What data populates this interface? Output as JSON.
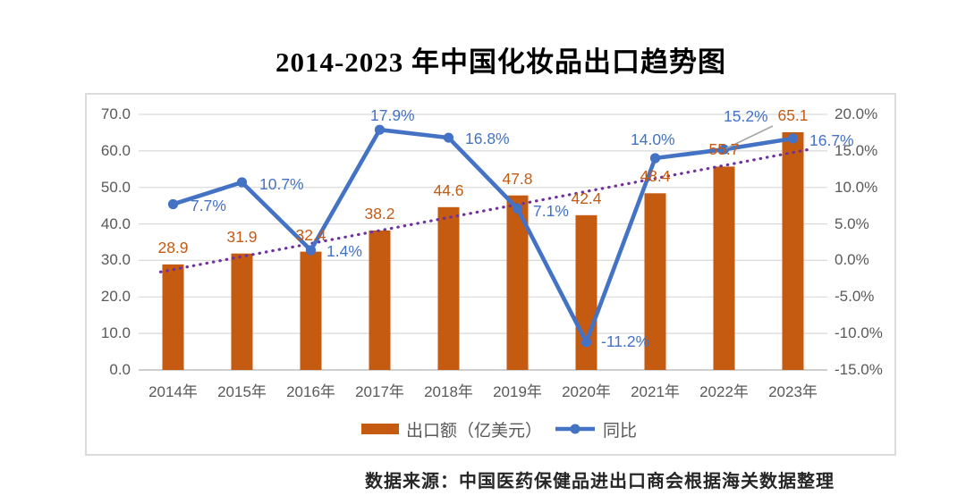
{
  "title": "2014-2023 年中国化妆品出口趋势图",
  "source_note": "数据来源：中国医药保健品进出口商会根据海关数据整理",
  "legend": {
    "bar_label": "出口额（亿美元）",
    "line_label": "同比"
  },
  "colors": {
    "bar": "#C55A11",
    "line": "#4472C4",
    "trendline": "#7030A0",
    "axis_text": "#595959",
    "gridline": "#D9D9D9",
    "axis_line": "#BFBFBF",
    "leader_line": "#A6A6A6",
    "bar_label": "#C55A11",
    "line_label": "#4472C4"
  },
  "chart_data": {
    "type": "bar",
    "subtype": "bar-line-combo",
    "title": "2014-2023 年中国化妆品出口趋势图",
    "categories": [
      "2014年",
      "2015年",
      "2016年",
      "2017年",
      "2018年",
      "2019年",
      "2020年",
      "2021年",
      "2022年",
      "2023年"
    ],
    "series": [
      {
        "name": "出口额（亿美元）",
        "chart": "bar",
        "axis": "left",
        "values": [
          28.9,
          31.9,
          32.4,
          38.2,
          44.6,
          47.8,
          42.4,
          48.4,
          55.7,
          65.1
        ],
        "labels": [
          "28.9",
          "31.9",
          "32.4",
          "38.2",
          "44.6",
          "47.8",
          "42.4",
          "48.4",
          "55.7",
          "65.1"
        ]
      },
      {
        "name": "同比",
        "chart": "line",
        "axis": "right",
        "values": [
          7.7,
          10.7,
          1.4,
          17.9,
          16.8,
          7.1,
          -11.2,
          14.0,
          15.2,
          16.7
        ],
        "labels": [
          "7.7%",
          "10.7%",
          "1.4%",
          "17.9%",
          "16.8%",
          "7.1%",
          "-11.2%",
          "14.0%",
          "15.2%",
          "16.7%"
        ]
      }
    ],
    "trendline": {
      "for_series": "出口额（亿美元）",
      "type": "linear",
      "style": "dotted"
    },
    "left_axis": {
      "min": 0,
      "max": 70,
      "step": 10,
      "tick_labels": [
        "0.0",
        "10.0",
        "20.0",
        "30.0",
        "40.0",
        "50.0",
        "60.0",
        "70.0"
      ]
    },
    "right_axis": {
      "min": -15,
      "max": 20,
      "step": 5,
      "tick_labels": [
        "-15.0%",
        "-10.0%",
        "-5.0%",
        "0.0%",
        "5.0%",
        "10.0%",
        "15.0%",
        "20.0%"
      ]
    },
    "grid": true,
    "legend_position": "bottom"
  }
}
